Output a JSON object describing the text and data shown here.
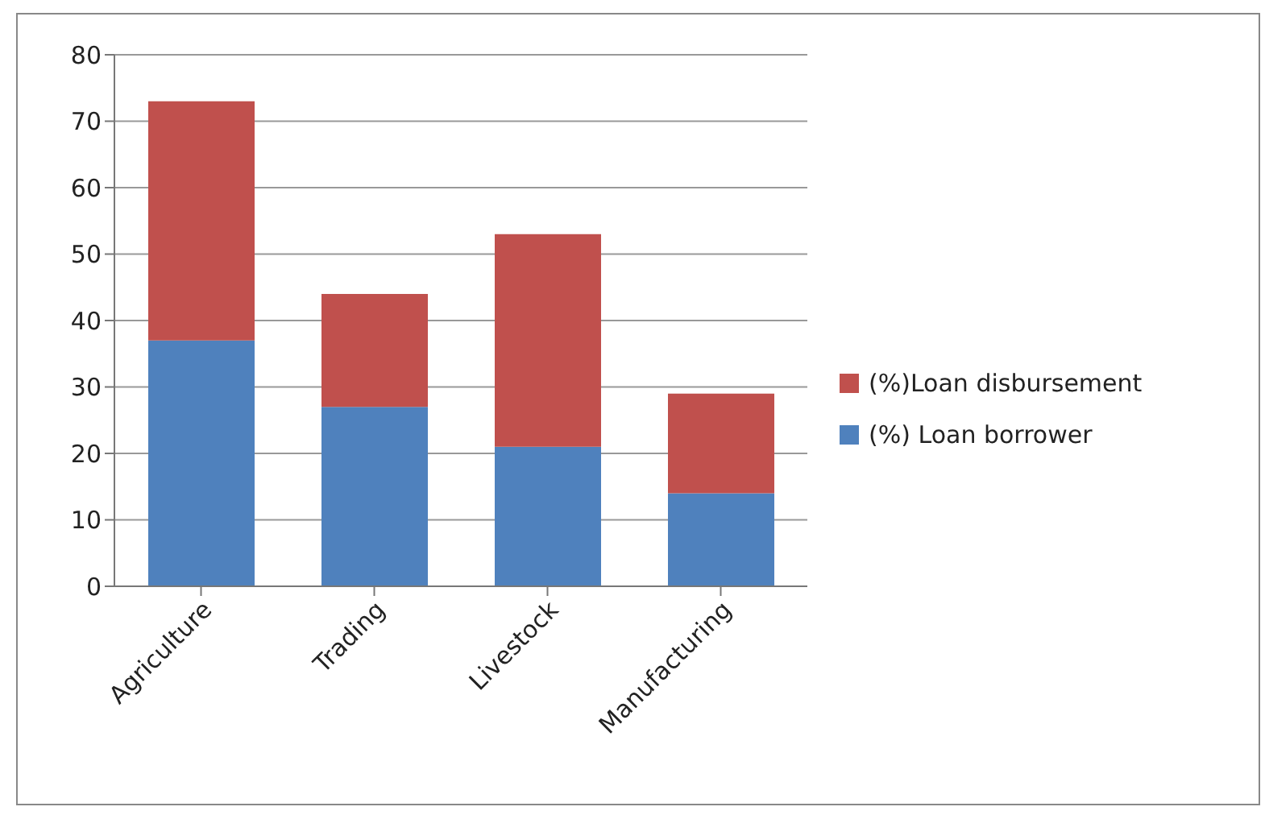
{
  "chart_data": {
    "type": "bar",
    "stacked": true,
    "categories": [
      "Agriculture",
      "Trading",
      "Livestock",
      "Manufacturing"
    ],
    "series": [
      {
        "name": "(%) Loan borrower",
        "color": "#4f81bd",
        "values": [
          37,
          27,
          21,
          14
        ]
      },
      {
        "name": "(%)Loan disbursement",
        "color": "#c0504d",
        "values": [
          36,
          17,
          32,
          15
        ]
      }
    ],
    "ylim": [
      0,
      80
    ],
    "yticks": [
      0,
      10,
      20,
      30,
      40,
      50,
      60,
      70,
      80
    ],
    "grid": "y",
    "legend": "right"
  }
}
